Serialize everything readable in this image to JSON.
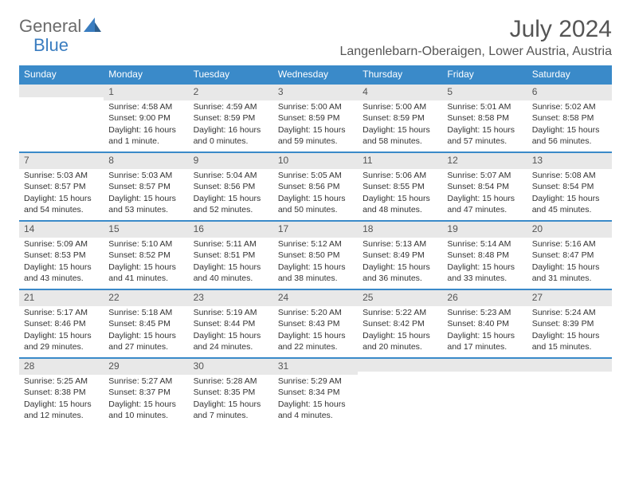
{
  "logo": {
    "general": "General",
    "blue": "Blue"
  },
  "title": "July 2024",
  "location": "Langenlebarn-Oberaigen, Lower Austria, Austria",
  "colors": {
    "header_bg": "#3a8ac9",
    "header_text": "#ffffff",
    "daynum_bg": "#e8e8e8",
    "border": "#3a8ac9",
    "text": "#333333",
    "logo_gray": "#6b6b6b",
    "logo_blue": "#3a7dc0"
  },
  "weekdays": [
    "Sunday",
    "Monday",
    "Tuesday",
    "Wednesday",
    "Thursday",
    "Friday",
    "Saturday"
  ],
  "weeks": [
    [
      {
        "n": "",
        "sr": "",
        "ss": "",
        "dl": ""
      },
      {
        "n": "1",
        "sr": "Sunrise: 4:58 AM",
        "ss": "Sunset: 9:00 PM",
        "dl": "Daylight: 16 hours and 1 minute."
      },
      {
        "n": "2",
        "sr": "Sunrise: 4:59 AM",
        "ss": "Sunset: 8:59 PM",
        "dl": "Daylight: 16 hours and 0 minutes."
      },
      {
        "n": "3",
        "sr": "Sunrise: 5:00 AM",
        "ss": "Sunset: 8:59 PM",
        "dl": "Daylight: 15 hours and 59 minutes."
      },
      {
        "n": "4",
        "sr": "Sunrise: 5:00 AM",
        "ss": "Sunset: 8:59 PM",
        "dl": "Daylight: 15 hours and 58 minutes."
      },
      {
        "n": "5",
        "sr": "Sunrise: 5:01 AM",
        "ss": "Sunset: 8:58 PM",
        "dl": "Daylight: 15 hours and 57 minutes."
      },
      {
        "n": "6",
        "sr": "Sunrise: 5:02 AM",
        "ss": "Sunset: 8:58 PM",
        "dl": "Daylight: 15 hours and 56 minutes."
      }
    ],
    [
      {
        "n": "7",
        "sr": "Sunrise: 5:03 AM",
        "ss": "Sunset: 8:57 PM",
        "dl": "Daylight: 15 hours and 54 minutes."
      },
      {
        "n": "8",
        "sr": "Sunrise: 5:03 AM",
        "ss": "Sunset: 8:57 PM",
        "dl": "Daylight: 15 hours and 53 minutes."
      },
      {
        "n": "9",
        "sr": "Sunrise: 5:04 AM",
        "ss": "Sunset: 8:56 PM",
        "dl": "Daylight: 15 hours and 52 minutes."
      },
      {
        "n": "10",
        "sr": "Sunrise: 5:05 AM",
        "ss": "Sunset: 8:56 PM",
        "dl": "Daylight: 15 hours and 50 minutes."
      },
      {
        "n": "11",
        "sr": "Sunrise: 5:06 AM",
        "ss": "Sunset: 8:55 PM",
        "dl": "Daylight: 15 hours and 48 minutes."
      },
      {
        "n": "12",
        "sr": "Sunrise: 5:07 AM",
        "ss": "Sunset: 8:54 PM",
        "dl": "Daylight: 15 hours and 47 minutes."
      },
      {
        "n": "13",
        "sr": "Sunrise: 5:08 AM",
        "ss": "Sunset: 8:54 PM",
        "dl": "Daylight: 15 hours and 45 minutes."
      }
    ],
    [
      {
        "n": "14",
        "sr": "Sunrise: 5:09 AM",
        "ss": "Sunset: 8:53 PM",
        "dl": "Daylight: 15 hours and 43 minutes."
      },
      {
        "n": "15",
        "sr": "Sunrise: 5:10 AM",
        "ss": "Sunset: 8:52 PM",
        "dl": "Daylight: 15 hours and 41 minutes."
      },
      {
        "n": "16",
        "sr": "Sunrise: 5:11 AM",
        "ss": "Sunset: 8:51 PM",
        "dl": "Daylight: 15 hours and 40 minutes."
      },
      {
        "n": "17",
        "sr": "Sunrise: 5:12 AM",
        "ss": "Sunset: 8:50 PM",
        "dl": "Daylight: 15 hours and 38 minutes."
      },
      {
        "n": "18",
        "sr": "Sunrise: 5:13 AM",
        "ss": "Sunset: 8:49 PM",
        "dl": "Daylight: 15 hours and 36 minutes."
      },
      {
        "n": "19",
        "sr": "Sunrise: 5:14 AM",
        "ss": "Sunset: 8:48 PM",
        "dl": "Daylight: 15 hours and 33 minutes."
      },
      {
        "n": "20",
        "sr": "Sunrise: 5:16 AM",
        "ss": "Sunset: 8:47 PM",
        "dl": "Daylight: 15 hours and 31 minutes."
      }
    ],
    [
      {
        "n": "21",
        "sr": "Sunrise: 5:17 AM",
        "ss": "Sunset: 8:46 PM",
        "dl": "Daylight: 15 hours and 29 minutes."
      },
      {
        "n": "22",
        "sr": "Sunrise: 5:18 AM",
        "ss": "Sunset: 8:45 PM",
        "dl": "Daylight: 15 hours and 27 minutes."
      },
      {
        "n": "23",
        "sr": "Sunrise: 5:19 AM",
        "ss": "Sunset: 8:44 PM",
        "dl": "Daylight: 15 hours and 24 minutes."
      },
      {
        "n": "24",
        "sr": "Sunrise: 5:20 AM",
        "ss": "Sunset: 8:43 PM",
        "dl": "Daylight: 15 hours and 22 minutes."
      },
      {
        "n": "25",
        "sr": "Sunrise: 5:22 AM",
        "ss": "Sunset: 8:42 PM",
        "dl": "Daylight: 15 hours and 20 minutes."
      },
      {
        "n": "26",
        "sr": "Sunrise: 5:23 AM",
        "ss": "Sunset: 8:40 PM",
        "dl": "Daylight: 15 hours and 17 minutes."
      },
      {
        "n": "27",
        "sr": "Sunrise: 5:24 AM",
        "ss": "Sunset: 8:39 PM",
        "dl": "Daylight: 15 hours and 15 minutes."
      }
    ],
    [
      {
        "n": "28",
        "sr": "Sunrise: 5:25 AM",
        "ss": "Sunset: 8:38 PM",
        "dl": "Daylight: 15 hours and 12 minutes."
      },
      {
        "n": "29",
        "sr": "Sunrise: 5:27 AM",
        "ss": "Sunset: 8:37 PM",
        "dl": "Daylight: 15 hours and 10 minutes."
      },
      {
        "n": "30",
        "sr": "Sunrise: 5:28 AM",
        "ss": "Sunset: 8:35 PM",
        "dl": "Daylight: 15 hours and 7 minutes."
      },
      {
        "n": "31",
        "sr": "Sunrise: 5:29 AM",
        "ss": "Sunset: 8:34 PM",
        "dl": "Daylight: 15 hours and 4 minutes."
      },
      {
        "n": "",
        "sr": "",
        "ss": "",
        "dl": ""
      },
      {
        "n": "",
        "sr": "",
        "ss": "",
        "dl": ""
      },
      {
        "n": "",
        "sr": "",
        "ss": "",
        "dl": ""
      }
    ]
  ]
}
